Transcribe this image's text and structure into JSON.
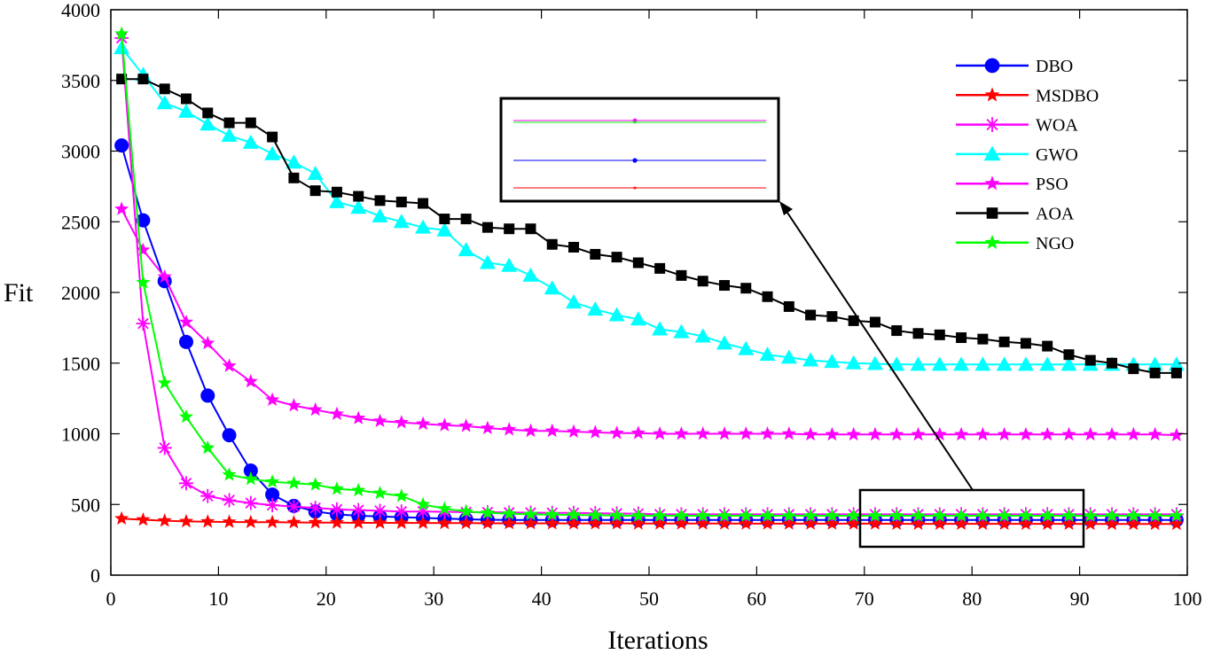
{
  "chart_data": {
    "type": "line",
    "xlabel": "Iterations",
    "ylabel": "Fit",
    "xlim": [
      0,
      100
    ],
    "ylim": [
      0,
      4000
    ],
    "xticks": [
      "0",
      "10",
      "20",
      "30",
      "40",
      "50",
      "60",
      "70",
      "80",
      "90",
      "100"
    ],
    "yticks": [
      "0",
      "500",
      "1000",
      "1500",
      "2000",
      "2500",
      "3000",
      "3500",
      "4000"
    ],
    "grid": false,
    "legend_position": "top-right",
    "x": [
      1,
      3,
      5,
      7,
      9,
      11,
      13,
      15,
      17,
      19,
      21,
      23,
      25,
      27,
      29,
      31,
      33,
      35,
      37,
      39,
      41,
      43,
      45,
      47,
      49,
      51,
      53,
      55,
      57,
      59,
      61,
      63,
      65,
      67,
      69,
      71,
      73,
      75,
      77,
      79,
      81,
      83,
      85,
      87,
      89,
      91,
      93,
      95,
      97,
      99
    ],
    "series": [
      {
        "name": "DBO",
        "color": "#0000ff",
        "marker": "circle",
        "values": [
          3040,
          2510,
          2080,
          1650,
          1270,
          990,
          740,
          570,
          490,
          450,
          430,
          420,
          415,
          410,
          405,
          400,
          395,
          392,
          390,
          390,
          390,
          390,
          390,
          390,
          390,
          390,
          390,
          390,
          390,
          390,
          390,
          390,
          390,
          390,
          390,
          390,
          390,
          390,
          390,
          390,
          390,
          390,
          390,
          390,
          390,
          390,
          390,
          390,
          390,
          390
        ]
      },
      {
        "name": "MSDBO",
        "color": "#ff0000",
        "marker": "star",
        "values": [
          400,
          392,
          385,
          380,
          378,
          376,
          375,
          374,
          373,
          372,
          371,
          370,
          370,
          369,
          369,
          368,
          368,
          367,
          367,
          367,
          366,
          366,
          366,
          366,
          365,
          365,
          365,
          365,
          365,
          364,
          364,
          364,
          364,
          364,
          364,
          364,
          363,
          363,
          363,
          363,
          363,
          363,
          363,
          363,
          363,
          362,
          362,
          362,
          362,
          362
        ]
      },
      {
        "name": "WOA",
        "color": "#ff00ff",
        "marker": "asterisk",
        "values": [
          3800,
          1780,
          900,
          650,
          560,
          530,
          510,
          495,
          485,
          475,
          465,
          460,
          455,
          450,
          450,
          448,
          446,
          445,
          443,
          442,
          440,
          440,
          438,
          436,
          435,
          430,
          430,
          430,
          430,
          430,
          430,
          430,
          430,
          430,
          430,
          430,
          430,
          430,
          430,
          430,
          430,
          430,
          430,
          430,
          430,
          430,
          430,
          430,
          430,
          430
        ]
      },
      {
        "name": "GWO",
        "color": "#00ffff",
        "marker": "triangle",
        "values": [
          3730,
          3540,
          3340,
          3280,
          3190,
          3110,
          3060,
          2980,
          2920,
          2840,
          2640,
          2600,
          2540,
          2500,
          2460,
          2440,
          2300,
          2210,
          2190,
          2120,
          2030,
          1930,
          1880,
          1840,
          1810,
          1740,
          1720,
          1690,
          1640,
          1600,
          1560,
          1540,
          1520,
          1510,
          1500,
          1495,
          1490,
          1490,
          1490,
          1490,
          1490,
          1490,
          1490,
          1490,
          1490,
          1490,
          1490,
          1490,
          1490,
          1490
        ]
      },
      {
        "name": "PSO",
        "color": "#ff00ff",
        "marker": "star",
        "values": [
          2590,
          2300,
          2110,
          1790,
          1640,
          1480,
          1370,
          1240,
          1200,
          1170,
          1140,
          1110,
          1090,
          1080,
          1070,
          1060,
          1055,
          1040,
          1030,
          1020,
          1020,
          1015,
          1010,
          1005,
          1005,
          1000,
          1000,
          1000,
          1000,
          1000,
          1000,
          1000,
          995,
          995,
          995,
          995,
          995,
          995,
          995,
          995,
          995,
          995,
          995,
          995,
          995,
          995,
          995,
          995,
          995,
          990
        ]
      },
      {
        "name": "AOA",
        "color": "#000000",
        "marker": "square",
        "values": [
          3510,
          3510,
          3440,
          3370,
          3270,
          3200,
          3200,
          3100,
          2810,
          2720,
          2710,
          2680,
          2650,
          2640,
          2630,
          2520,
          2520,
          2460,
          2450,
          2450,
          2340,
          2320,
          2270,
          2250,
          2210,
          2170,
          2120,
          2080,
          2050,
          2030,
          1970,
          1900,
          1840,
          1830,
          1800,
          1790,
          1730,
          1710,
          1700,
          1680,
          1670,
          1650,
          1640,
          1620,
          1560,
          1520,
          1500,
          1460,
          1430,
          1430
        ]
      },
      {
        "name": "NGO",
        "color": "#00ff00",
        "marker": "star",
        "values": [
          3830,
          2070,
          1360,
          1120,
          900,
          710,
          680,
          660,
          650,
          640,
          610,
          600,
          580,
          560,
          500,
          470,
          450,
          440,
          435,
          430,
          428,
          426,
          424,
          422,
          420,
          420,
          420,
          420,
          420,
          420,
          420,
          420,
          420,
          420,
          420,
          420,
          420,
          420,
          420,
          420,
          420,
          420,
          420,
          420,
          420,
          420,
          420,
          420,
          420,
          420
        ]
      }
    ]
  }
}
